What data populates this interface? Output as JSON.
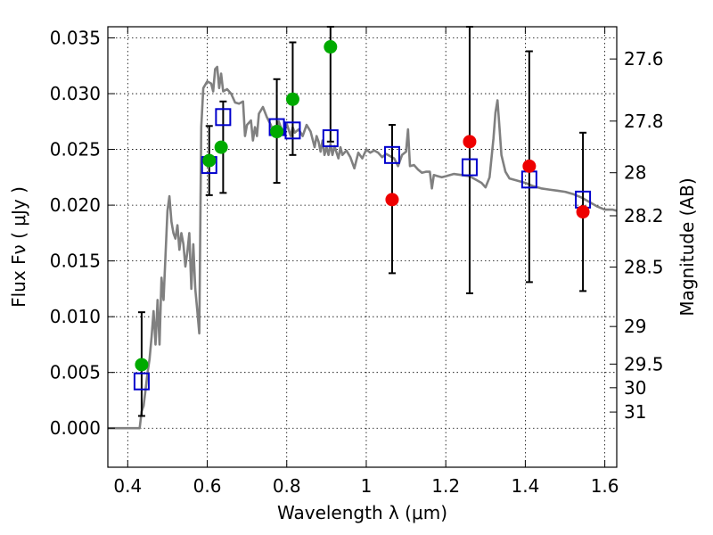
{
  "chart_data": {
    "type": "scatter",
    "xlabel": "Wavelength  λ (μm)",
    "ylabel": "Flux  Fν  ( μJy )",
    "y2label": "Magnitude (AB)",
    "xlim": [
      0.35,
      1.63
    ],
    "ylim": [
      -0.0035,
      0.036
    ],
    "grid": true,
    "x_ticks": [
      {
        "value": 0.4,
        "label": "0.4"
      },
      {
        "value": 0.6,
        "label": "0.6"
      },
      {
        "value": 0.8,
        "label": "0.8"
      },
      {
        "value": 1.0,
        "label": "1"
      },
      {
        "value": 1.2,
        "label": "1.2"
      },
      {
        "value": 1.4,
        "label": "1.4"
      },
      {
        "value": 1.6,
        "label": "1.6"
      }
    ],
    "y_ticks": [
      {
        "value": 0.0,
        "label": "0.000"
      },
      {
        "value": 0.005,
        "label": "0.005"
      },
      {
        "value": 0.01,
        "label": "0.010"
      },
      {
        "value": 0.015,
        "label": "0.015"
      },
      {
        "value": 0.02,
        "label": "0.020"
      },
      {
        "value": 0.025,
        "label": "0.025"
      },
      {
        "value": 0.03,
        "label": "0.030"
      },
      {
        "value": 0.035,
        "label": "0.035"
      }
    ],
    "magnitude_ticks": [
      {
        "label": "27.6",
        "flux": 0.03311
      },
      {
        "label": "27.8",
        "flux": 0.02754
      },
      {
        "label": "28",
        "flux": 0.02291
      },
      {
        "label": "28.2",
        "flux": 0.01905
      },
      {
        "label": "28.5",
        "flux": 0.01445
      },
      {
        "label": "29",
        "flux": 0.00912
      },
      {
        "label": "29.5",
        "flux": 0.00575
      },
      {
        "label": "30",
        "flux": 0.00363
      },
      {
        "label": "31",
        "flux": 0.00145
      }
    ],
    "sed_model": {
      "color": "#808080",
      "points": [
        [
          0.35,
          0.0
        ],
        [
          0.43,
          0.0
        ],
        [
          0.435,
          0.0015
        ],
        [
          0.44,
          0.002
        ],
        [
          0.445,
          0.0035
        ],
        [
          0.45,
          0.005
        ],
        [
          0.455,
          0.0062
        ],
        [
          0.46,
          0.0082
        ],
        [
          0.465,
          0.0105
        ],
        [
          0.47,
          0.0075
        ],
        [
          0.475,
          0.0115
        ],
        [
          0.48,
          0.0075
        ],
        [
          0.485,
          0.0135
        ],
        [
          0.49,
          0.0115
        ],
        [
          0.495,
          0.0155
        ],
        [
          0.5,
          0.0195
        ],
        [
          0.505,
          0.0208
        ],
        [
          0.51,
          0.0185
        ],
        [
          0.515,
          0.0175
        ],
        [
          0.52,
          0.017
        ],
        [
          0.525,
          0.0182
        ],
        [
          0.53,
          0.016
        ],
        [
          0.535,
          0.0175
        ],
        [
          0.54,
          0.0165
        ],
        [
          0.545,
          0.0145
        ],
        [
          0.55,
          0.0158
        ],
        [
          0.555,
          0.0175
        ],
        [
          0.56,
          0.0125
        ],
        [
          0.565,
          0.0165
        ],
        [
          0.57,
          0.0125
        ],
        [
          0.575,
          0.0105
        ],
        [
          0.58,
          0.0085
        ],
        [
          0.585,
          0.027
        ],
        [
          0.59,
          0.0305
        ],
        [
          0.6,
          0.0311
        ],
        [
          0.61,
          0.0309
        ],
        [
          0.615,
          0.0302
        ],
        [
          0.62,
          0.0322
        ],
        [
          0.625,
          0.0324
        ],
        [
          0.63,
          0.0305
        ],
        [
          0.635,
          0.0318
        ],
        [
          0.64,
          0.0302
        ],
        [
          0.65,
          0.0304
        ],
        [
          0.66,
          0.03
        ],
        [
          0.67,
          0.0292
        ],
        [
          0.68,
          0.0291
        ],
        [
          0.69,
          0.0293
        ],
        [
          0.695,
          0.0262
        ],
        [
          0.7,
          0.0272
        ],
        [
          0.71,
          0.0276
        ],
        [
          0.715,
          0.0258
        ],
        [
          0.72,
          0.027
        ],
        [
          0.725,
          0.0262
        ],
        [
          0.73,
          0.0282
        ],
        [
          0.74,
          0.0288
        ],
        [
          0.75,
          0.0279
        ],
        [
          0.76,
          0.0272
        ],
        [
          0.77,
          0.0262
        ],
        [
          0.78,
          0.0275
        ],
        [
          0.79,
          0.0265
        ],
        [
          0.8,
          0.0273
        ],
        [
          0.81,
          0.0262
        ],
        [
          0.815,
          0.027
        ],
        [
          0.82,
          0.0265
        ],
        [
          0.83,
          0.0268
        ],
        [
          0.84,
          0.0262
        ],
        [
          0.85,
          0.0272
        ],
        [
          0.86,
          0.0266
        ],
        [
          0.87,
          0.0252
        ],
        [
          0.875,
          0.0262
        ],
        [
          0.88,
          0.0257
        ],
        [
          0.885,
          0.0248
        ],
        [
          0.89,
          0.0258
        ],
        [
          0.895,
          0.0245
        ],
        [
          0.9,
          0.0252
        ],
        [
          0.905,
          0.0245
        ],
        [
          0.91,
          0.0255
        ],
        [
          0.915,
          0.0245
        ],
        [
          0.92,
          0.0253
        ],
        [
          0.93,
          0.0242
        ],
        [
          0.935,
          0.0252
        ],
        [
          0.94,
          0.0245
        ],
        [
          0.95,
          0.0249
        ],
        [
          0.96,
          0.0243
        ],
        [
          0.97,
          0.0233
        ],
        [
          0.98,
          0.0247
        ],
        [
          0.99,
          0.0242
        ],
        [
          1.0,
          0.025
        ],
        [
          1.01,
          0.0247
        ],
        [
          1.02,
          0.0249
        ],
        [
          1.03,
          0.0247
        ],
        [
          1.04,
          0.0243
        ],
        [
          1.05,
          0.0246
        ],
        [
          1.06,
          0.0244
        ],
        [
          1.07,
          0.0242
        ],
        [
          1.08,
          0.0235
        ],
        [
          1.09,
          0.0245
        ],
        [
          1.1,
          0.0248
        ],
        [
          1.105,
          0.0268
        ],
        [
          1.11,
          0.0235
        ],
        [
          1.12,
          0.0236
        ],
        [
          1.13,
          0.0232
        ],
        [
          1.14,
          0.0229
        ],
        [
          1.15,
          0.023
        ],
        [
          1.16,
          0.023
        ],
        [
          1.165,
          0.0215
        ],
        [
          1.17,
          0.0227
        ],
        [
          1.18,
          0.0226
        ],
        [
          1.19,
          0.0225
        ],
        [
          1.2,
          0.0226
        ],
        [
          1.22,
          0.0228
        ],
        [
          1.24,
          0.0227
        ],
        [
          1.26,
          0.0226
        ],
        [
          1.28,
          0.0222
        ],
        [
          1.29,
          0.022
        ],
        [
          1.3,
          0.0216
        ],
        [
          1.31,
          0.0225
        ],
        [
          1.32,
          0.026
        ],
        [
          1.325,
          0.0283
        ],
        [
          1.33,
          0.0294
        ],
        [
          1.335,
          0.027
        ],
        [
          1.34,
          0.0245
        ],
        [
          1.35,
          0.023
        ],
        [
          1.36,
          0.0224
        ],
        [
          1.38,
          0.0222
        ],
        [
          1.4,
          0.022
        ],
        [
          1.42,
          0.0217
        ],
        [
          1.44,
          0.0215
        ],
        [
          1.46,
          0.0214
        ],
        [
          1.48,
          0.0213
        ],
        [
          1.5,
          0.0212
        ],
        [
          1.52,
          0.021
        ],
        [
          1.54,
          0.0207
        ],
        [
          1.56,
          0.0203
        ],
        [
          1.58,
          0.0199
        ],
        [
          1.6,
          0.0196
        ],
        [
          1.62,
          0.0196
        ],
        [
          1.63,
          0.0195
        ]
      ]
    },
    "observed": {
      "marker": "open-square",
      "color": "#0000cc",
      "points": [
        {
          "x": 0.435,
          "y": 0.0042,
          "yerr_low": 0.0011,
          "yerr_high": 0.0104
        },
        {
          "x": 0.605,
          "y": 0.0236,
          "yerr_low": 0.0209,
          "yerr_high": 0.0271
        },
        {
          "x": 0.64,
          "y": 0.0279,
          "yerr_low": 0.0211,
          "yerr_high": 0.0293
        },
        {
          "x": 0.775,
          "y": 0.027,
          "yerr_low": 0.022,
          "yerr_high": 0.0313
        },
        {
          "x": 0.815,
          "y": 0.0267,
          "yerr_low": 0.0245,
          "yerr_high": 0.0346
        },
        {
          "x": 0.91,
          "y": 0.026,
          "yerr_low": 0.0257,
          "yerr_high": 0.036
        },
        {
          "x": 1.065,
          "y": 0.0245,
          "yerr_low": 0.0139,
          "yerr_high": 0.0272
        },
        {
          "x": 1.26,
          "y": 0.0234,
          "yerr_low": 0.0121,
          "yerr_high": 0.036
        },
        {
          "x": 1.41,
          "y": 0.0223,
          "yerr_low": 0.0131,
          "yerr_high": 0.0338
        },
        {
          "x": 1.545,
          "y": 0.0205,
          "yerr_low": 0.0123,
          "yerr_high": 0.0265
        }
      ]
    },
    "model_bands_green": {
      "marker": "filled-circle",
      "color": "#00aa00",
      "points": [
        {
          "x": 0.435,
          "y": 0.0057
        },
        {
          "x": 0.605,
          "y": 0.024
        },
        {
          "x": 0.635,
          "y": 0.0252
        },
        {
          "x": 0.775,
          "y": 0.0266
        },
        {
          "x": 0.815,
          "y": 0.0295
        },
        {
          "x": 0.91,
          "y": 0.0342
        }
      ]
    },
    "model_bands_red": {
      "marker": "filled-circle",
      "color": "#ee0000",
      "points": [
        {
          "x": 1.065,
          "y": 0.0205
        },
        {
          "x": 1.26,
          "y": 0.0257
        },
        {
          "x": 1.41,
          "y": 0.0235
        },
        {
          "x": 1.545,
          "y": 0.0194
        }
      ]
    }
  }
}
